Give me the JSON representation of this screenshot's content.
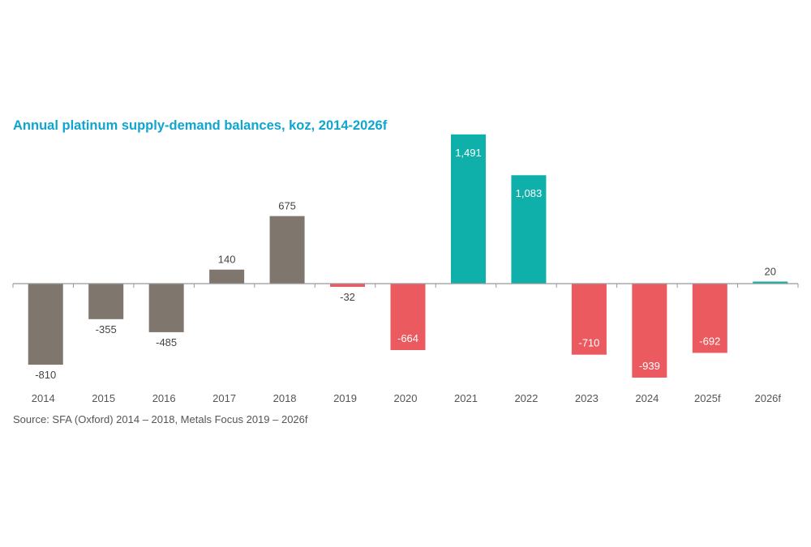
{
  "chart_data": {
    "type": "bar",
    "title": "Annual platinum supply-demand balances, koz, 2014-2026f",
    "source": "Source: SFA (Oxford) 2014 – 2018,  Metals Focus 2019 – 2026f",
    "categories": [
      "2014",
      "2015",
      "2016",
      "2017",
      "2018",
      "2019",
      "2020",
      "2021",
      "2022",
      "2023",
      "2024",
      "2025f",
      "2026f"
    ],
    "values": [
      -810,
      -355,
      -485,
      140,
      675,
      -32,
      -664,
      1491,
      1083,
      -710,
      -939,
      -692,
      20
    ],
    "data_labels": [
      "-810",
      "-355",
      "-485",
      "140",
      "675",
      "-32",
      "-664",
      "1,491",
      "1,083",
      "-710",
      "-939",
      "-692",
      "20"
    ],
    "bar_colors": [
      "#7f766d",
      "#7f766d",
      "#7f766d",
      "#7f766d",
      "#7f766d",
      "#eb5a5f",
      "#eb5a5f",
      "#0fb0a9",
      "#0fb0a9",
      "#eb5a5f",
      "#eb5a5f",
      "#eb5a5f",
      "#0fb0a9"
    ],
    "colors": {
      "source_sfa": "#7f766d",
      "deficit": "#eb5a5f",
      "surplus": "#0fb0a9",
      "title": "#0ea5d0",
      "axis": "#999999"
    },
    "xlabel": "",
    "ylabel": "",
    "ylim": [
      -950,
      1500
    ],
    "grid": false,
    "legend": "none"
  }
}
